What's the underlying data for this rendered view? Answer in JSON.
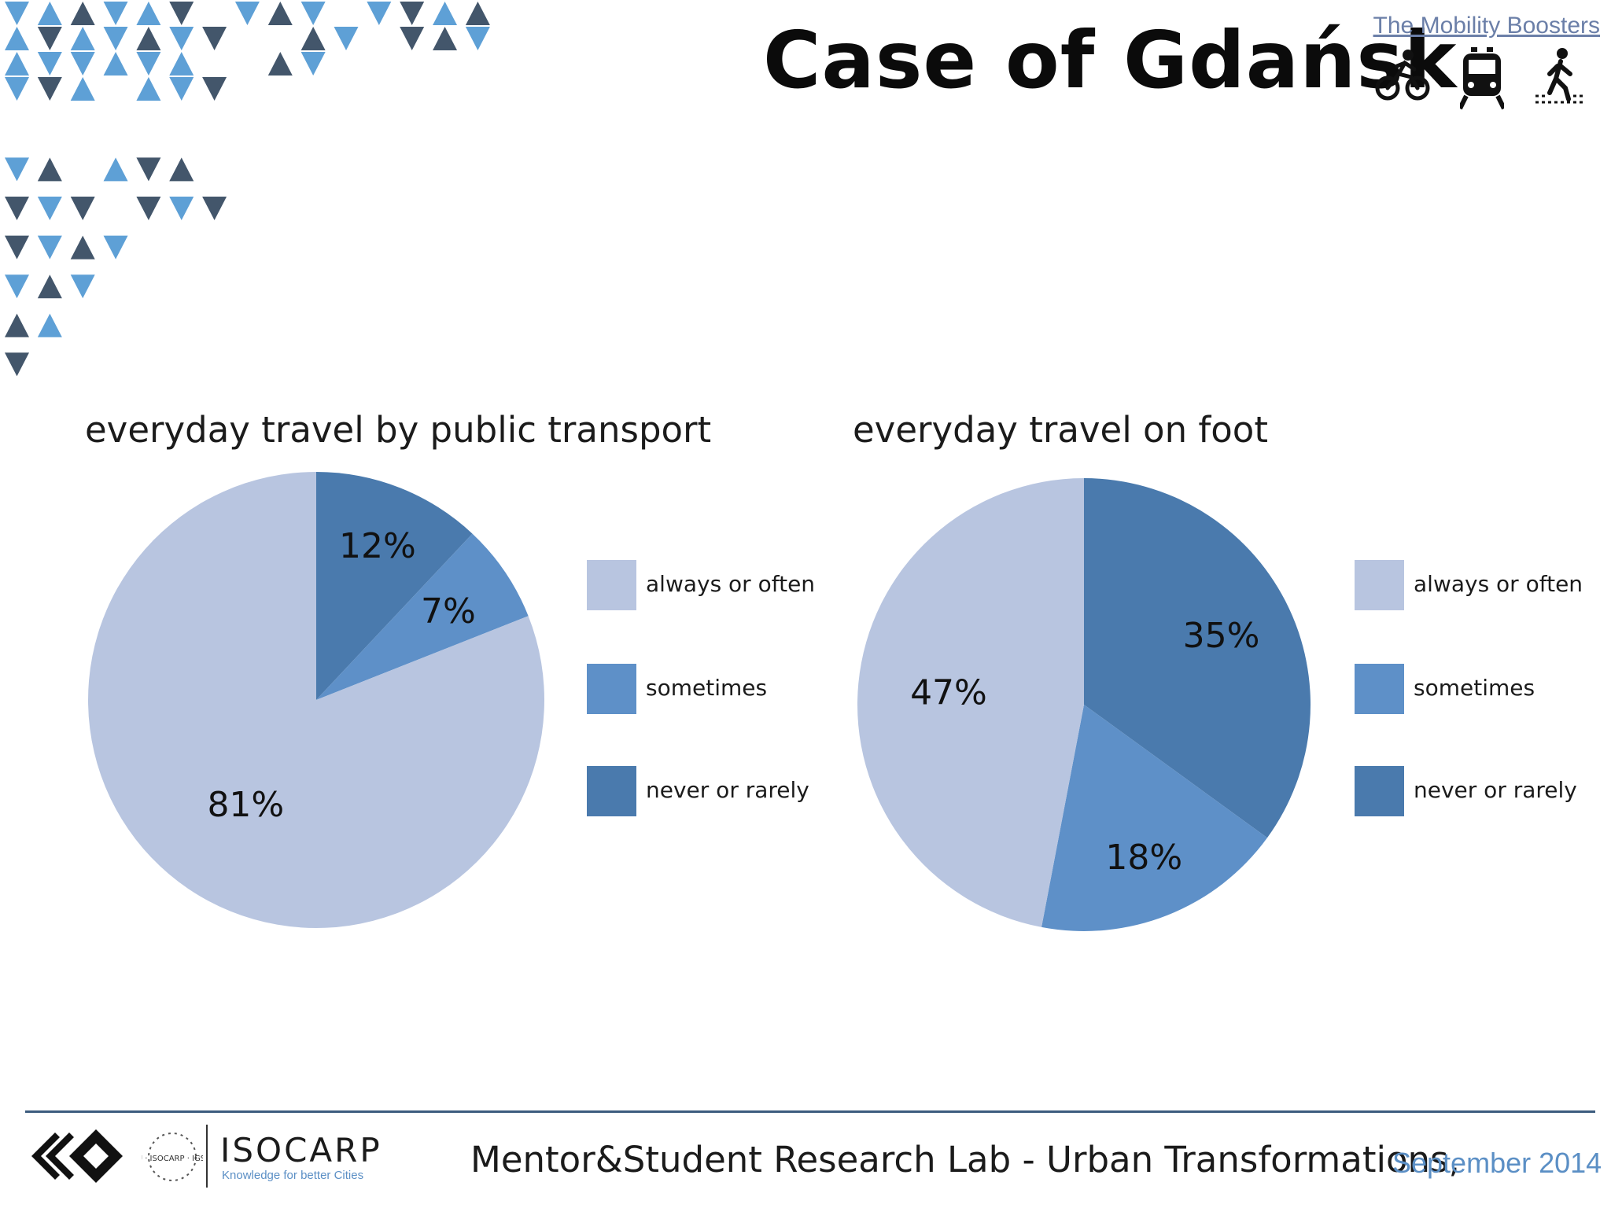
{
  "header": {
    "title": "Case of Gdańsk",
    "brand_link": "The Mobility Boosters",
    "icons": [
      "bicycle-icon",
      "train-icon",
      "pedestrian-icon"
    ]
  },
  "colors": {
    "always_or_often": "#b8c5e0",
    "sometimes": "#5e90c8",
    "never_or_rarely": "#4a7aad",
    "triangle_light": "#5ea0d6",
    "triangle_dark": "#43566b"
  },
  "chart_data": [
    {
      "type": "pie",
      "title": "everyday travel by public transport",
      "categories": [
        "always or often",
        "sometimes",
        "never or rarely"
      ],
      "values": [
        81,
        7,
        12
      ],
      "labels": [
        "81%",
        "7%",
        "12%"
      ],
      "legend_position": "right"
    },
    {
      "type": "pie",
      "title": "everyday travel on foot",
      "categories": [
        "always or often",
        "sometimes",
        "never or rarely"
      ],
      "values": [
        47,
        18,
        35
      ],
      "labels": [
        "47%",
        "18%",
        "35%"
      ],
      "legend_position": "right"
    }
  ],
  "footer": {
    "text": "Mentor&Student Research Lab - Urban Transformations,",
    "date": "September 2014",
    "org_name": "ISOCARP",
    "org_tagline": "Knowledge for better Cities",
    "seal_text": "AIU · ISOCARP · IGSRP"
  }
}
